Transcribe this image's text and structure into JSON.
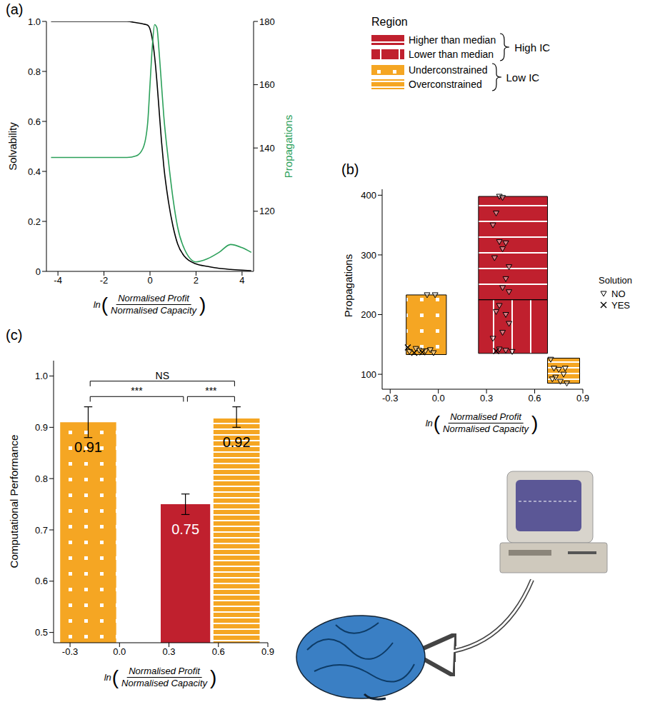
{
  "chart_data": [
    {
      "type": "line",
      "panel": "(a)",
      "x_label": {
        "prefix": "ln",
        "open": "(",
        "numerator": "Normalised Profit",
        "denominator": "Normalised Capacity",
        "close": ")"
      },
      "x": [
        -4.3,
        -3,
        -2,
        -1,
        -0.6,
        -0.3,
        -0.1,
        0,
        0.1,
        0.2,
        0.3,
        0.4,
        0.5,
        0.6,
        0.8,
        1.0,
        1.2,
        1.5,
        2,
        2.5,
        3,
        3.5,
        4,
        4.4
      ],
      "series": [
        {
          "name": "Solvability",
          "color": "#000000",
          "values": [
            1,
            1,
            1,
            1,
            0.995,
            0.99,
            0.985,
            0.97,
            0.93,
            0.86,
            0.76,
            0.64,
            0.52,
            0.42,
            0.28,
            0.18,
            0.11,
            0.06,
            0.03,
            0.02,
            0.012,
            0.008,
            0.005,
            0.003
          ]
        },
        {
          "name": "Propagations",
          "color": "#2ca05a",
          "axis": "y2",
          "values": [
            137,
            137,
            137,
            137,
            137.5,
            140,
            148,
            160,
            172,
            179,
            178,
            170,
            160,
            150,
            136,
            124,
            115,
            108,
            104,
            105,
            107,
            109.5,
            108.5,
            107
          ]
        }
      ],
      "xlim": [
        -4.5,
        4.5
      ],
      "xticks": [
        -4,
        -2,
        0,
        2,
        4
      ],
      "ylim": [
        0,
        1
      ],
      "yticks": [
        0,
        0.2,
        0.4,
        0.6,
        0.8,
        {
          "value": 1,
          "label": "1.0"
        }
      ],
      "y2lim": [
        101,
        180
      ],
      "y2ticks": [
        120,
        140,
        160,
        180
      ]
    },
    {
      "type": "range_bar",
      "panel": "(b)",
      "ylabel": "Propagations",
      "x_label": {
        "prefix": "ln",
        "open": "(",
        "numerator": "Normalised Profit",
        "denominator": "Normalised Capacity",
        "close": ")"
      },
      "xlim": [
        -0.35,
        0.9
      ],
      "xticks": [
        -0.3,
        {
          "value": 0,
          "label": "0.0"
        },
        0.3,
        0.6,
        0.9
      ],
      "ylim": [
        75,
        410
      ],
      "yticks": [
        100,
        200,
        300,
        400
      ],
      "region_legend": {
        "title": "Region",
        "groups": [
          {
            "name": "High IC",
            "entries": [
              {
                "name": "Higher than median",
                "color": "#c0202e"
              },
              {
                "name": "Lower than median",
                "color": "#c0202e"
              }
            ]
          },
          {
            "name": "Low IC",
            "entries": [
              {
                "name": "Underconstrained",
                "color": "#f5a623"
              },
              {
                "name": "Overconstrained",
                "color": "#f5a623"
              }
            ]
          }
        ]
      },
      "bars": [
        {
          "region": "Underconstrained",
          "x_range": [
            -0.2,
            0.05
          ],
          "y_range": [
            133,
            233
          ]
        },
        {
          "above_median": "Higher than median",
          "below_median": "Lower than median",
          "x_range": [
            0.25,
            0.68
          ],
          "y_range": [
            135,
            398
          ],
          "median": 225
        },
        {
          "region": "Overconstrained",
          "x_range": [
            0.68,
            0.88
          ],
          "y_range": [
            85,
            127
          ]
        }
      ],
      "solution_legend": {
        "title": "Solution",
        "entries": [
          {
            "name": "NO",
            "marker": "triangle-down"
          },
          {
            "name": "YES",
            "marker": "x"
          }
        ]
      },
      "points": {
        "x": [
          -0.18,
          -0.15,
          -0.12,
          -0.1,
          -0.08,
          -0.05,
          -0.03,
          -0.14,
          -0.02,
          -0.07,
          -0.19,
          0.38,
          0.4,
          0.36,
          0.34,
          0.38,
          0.42,
          0.4,
          0.35,
          0.44,
          0.42,
          0.4,
          0.44,
          0.38,
          0.36,
          0.42,
          0.44,
          0.4,
          0.34,
          0.38,
          0.42,
          0.46,
          0.36,
          0.7,
          0.72,
          0.75,
          0.78,
          0.73,
          0.76,
          0.8,
          0.71,
          0.79
        ],
        "y": [
          138,
          136,
          140,
          137,
          139,
          141,
          136,
          143,
          233,
          233,
          145,
          398,
          396,
          370,
          350,
          322,
          320,
          310,
          295,
          280,
          260,
          245,
          238,
          215,
          205,
          200,
          185,
          170,
          160,
          142,
          140,
          138,
          139,
          125,
          110,
          108,
          100,
          95,
          88,
          85,
          92,
          110
        ],
        "solution": [
          "NO",
          "YES",
          "NO",
          "YES",
          "NO",
          "NO",
          "NO",
          "NO",
          "NO",
          "NO",
          "YES",
          "NO",
          "NO",
          "NO",
          "NO",
          "NO",
          "NO",
          "NO",
          "NO",
          "NO",
          "NO",
          "NO",
          "NO",
          "NO",
          "NO",
          "NO",
          "NO",
          "NO",
          "NO",
          "NO",
          "NO",
          "NO",
          "YES",
          "NO",
          "NO",
          "NO",
          "NO",
          "NO",
          "NO",
          "NO",
          "NO",
          "NO"
        ]
      }
    },
    {
      "type": "bar",
      "panel": "(c)",
      "ylabel": "Computational Performance",
      "x_label": {
        "prefix": "ln",
        "open": "(",
        "numerator": "Normalised Profit",
        "denominator": "Normalised Capacity",
        "close": ")"
      },
      "xlim": [
        -0.4,
        0.9
      ],
      "xticks": [
        -0.3,
        {
          "value": 0,
          "label": "0.0"
        },
        0.3,
        0.6,
        0.9
      ],
      "ylim": [
        0.48,
        1.03
      ],
      "yticks": [
        0.5,
        0.6,
        0.7,
        0.8,
        0.9,
        {
          "value": 1,
          "label": "1.0"
        }
      ],
      "data_labels": true,
      "bars": [
        {
          "region": "Underconstrained",
          "color": "#f5a623",
          "x_range": [
            -0.36,
            -0.02
          ],
          "value": 0.91,
          "error": 0.03
        },
        {
          "region": "High IC",
          "color": "#c0202e",
          "x_range": [
            0.25,
            0.55
          ],
          "value": 0.75,
          "error": 0.02
        },
        {
          "region": "Overconstrained",
          "color": "#f5a623",
          "x_range": [
            0.57,
            0.85
          ],
          "value": 0.92,
          "error": 0.02
        }
      ],
      "comparisons": [
        {
          "from": "Underconstrained",
          "to": "Overconstrained",
          "label": "NS",
          "y": 0.99
        },
        {
          "from": "Underconstrained",
          "to": "High IC",
          "label": "***",
          "y": 0.96
        },
        {
          "from": "High IC",
          "to": "Overconstrained",
          "label": "***",
          "y": 0.96
        }
      ]
    }
  ]
}
